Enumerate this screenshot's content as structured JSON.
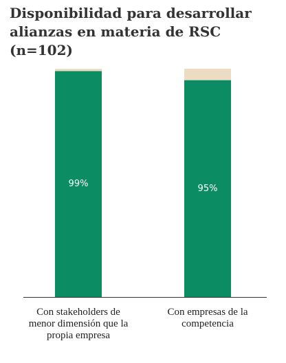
{
  "chart_data": {
    "type": "stacked_bar",
    "title": "Disponibilidad para desarrollar alianzas en materia de RSC (n=102)",
    "categories": [
      "Con stakeholders de menor dimensión que la propia empresa",
      "Con empresas de la competencia"
    ],
    "series": [
      {
        "color": "#0b8c63",
        "values": [
          99,
          95
        ],
        "value_labels": [
          "99%",
          "95%"
        ]
      },
      {
        "color": "#ecdcc3",
        "values": [
          1,
          5
        ]
      }
    ],
    "ylim": [
      0,
      100
    ]
  }
}
